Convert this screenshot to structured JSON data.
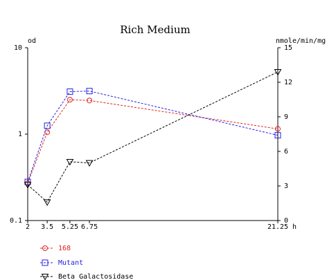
{
  "chart_data": {
    "type": "line",
    "title": "Rich Medium",
    "y_left_label": "od",
    "y_right_label": "nmole/min/mg",
    "x_unit_label": "h",
    "x_ticks": [
      2,
      3.5,
      5.25,
      6.75,
      21.25
    ],
    "x_tick_labels": [
      "2",
      "3.5",
      "5.25",
      "6.75",
      "21.25"
    ],
    "xlim": [
      2,
      21.25
    ],
    "y_left_scale": "log",
    "y_left_lim": [
      0.1,
      10
    ],
    "y_left_ticks": [
      0.1,
      1,
      10
    ],
    "y_left_tick_labels": [
      "0.1",
      "1",
      "10"
    ],
    "y_right_lim": [
      0,
      15
    ],
    "y_right_ticks": [
      0,
      3,
      6,
      9,
      12,
      15
    ],
    "y_right_tick_labels": [
      "0",
      "3",
      "6",
      "9",
      "12",
      "15"
    ],
    "grid": false,
    "legend_position": "bottom-left",
    "series": [
      {
        "name": "168",
        "axis": "left",
        "color": "#e02020",
        "marker": "circle",
        "x": [
          2,
          3.5,
          5.25,
          6.75,
          21.25
        ],
        "values": [
          0.27,
          1.05,
          2.5,
          2.45,
          1.15
        ]
      },
      {
        "name": "Mutant",
        "axis": "left",
        "color": "#2020e0",
        "marker": "square",
        "x": [
          2,
          3.5,
          5.25,
          6.75,
          21.25
        ],
        "values": [
          0.28,
          1.25,
          3.1,
          3.15,
          0.97
        ]
      },
      {
        "name": "Beta Galactosidase",
        "axis": "right",
        "color": "#000000",
        "marker": "triangle-down",
        "x": [
          2,
          3.5,
          5.25,
          6.75,
          21.25
        ],
        "values": [
          3.1,
          1.6,
          5.1,
          5.0,
          12.9
        ]
      }
    ]
  }
}
